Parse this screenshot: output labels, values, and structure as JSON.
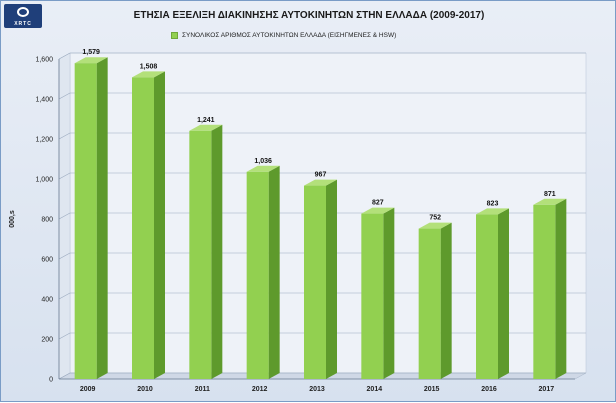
{
  "logo": {
    "text": "XRTC"
  },
  "chart_data": {
    "type": "bar",
    "title": "ΕΤΗΣΙΑ ΕΞΕΛΙΞΗ ΔΙΑΚΙΝΗΣΗΣ ΑΥΤΟΚΙΝΗΤΩΝ ΣΤΗΝ ΕΛΛΑΔΑ (2009-2017)",
    "ylabel": "000,s",
    "xlabel": "",
    "categories": [
      "2009",
      "2010",
      "2011",
      "2012",
      "2013",
      "2014",
      "2015",
      "2016",
      "2017"
    ],
    "series": [
      {
        "name": "ΣΥΝΟΛΙΚΟΣ ΑΡΙΘΜΟΣ ΑΥΤΟΚΙΝΗΤΩΝ  ΕΛΛΑΔΑ  (ΕΙΣΗΓΜΕΝΕΣ  & ΗSW)",
        "values": [
          1579,
          1508,
          1241,
          1036,
          967,
          827,
          752,
          823,
          871
        ]
      }
    ],
    "value_labels": [
      "1,579",
      "1,508",
      "1,241",
      "1,036",
      "967",
      "827",
      "752",
      "823",
      "871"
    ],
    "ylim": [
      0,
      1600
    ],
    "yticks": [
      0,
      200,
      400,
      600,
      800,
      1000,
      1200,
      1400,
      1600
    ],
    "ytick_labels": [
      "0",
      "200",
      "400",
      "600",
      "800",
      "1,000",
      "1,200",
      "1,400",
      "1,600"
    ],
    "grid": true,
    "legend_position": "top",
    "colors": {
      "bar_front": "#92d050",
      "bar_side": "#5e9a2c",
      "bar_top": "#b3e07a"
    }
  }
}
